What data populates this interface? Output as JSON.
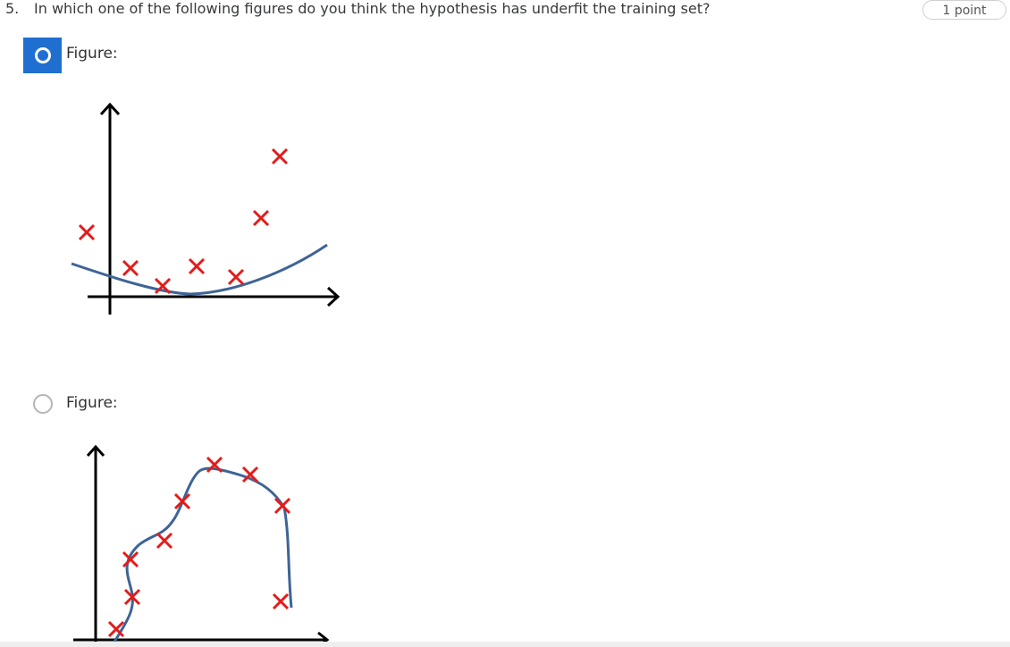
{
  "question": {
    "number": "5.",
    "text": "In which one of the following figures do you think the hypothesis has underfit the training set?",
    "points": "1 point"
  },
  "options": [
    {
      "label": "Figure:",
      "selected": true
    },
    {
      "label": "Figure:",
      "selected": false
    }
  ],
  "colors": {
    "accent": "#1f6fd1",
    "marker": "#e31b1b",
    "curve": "#3e6496"
  }
}
